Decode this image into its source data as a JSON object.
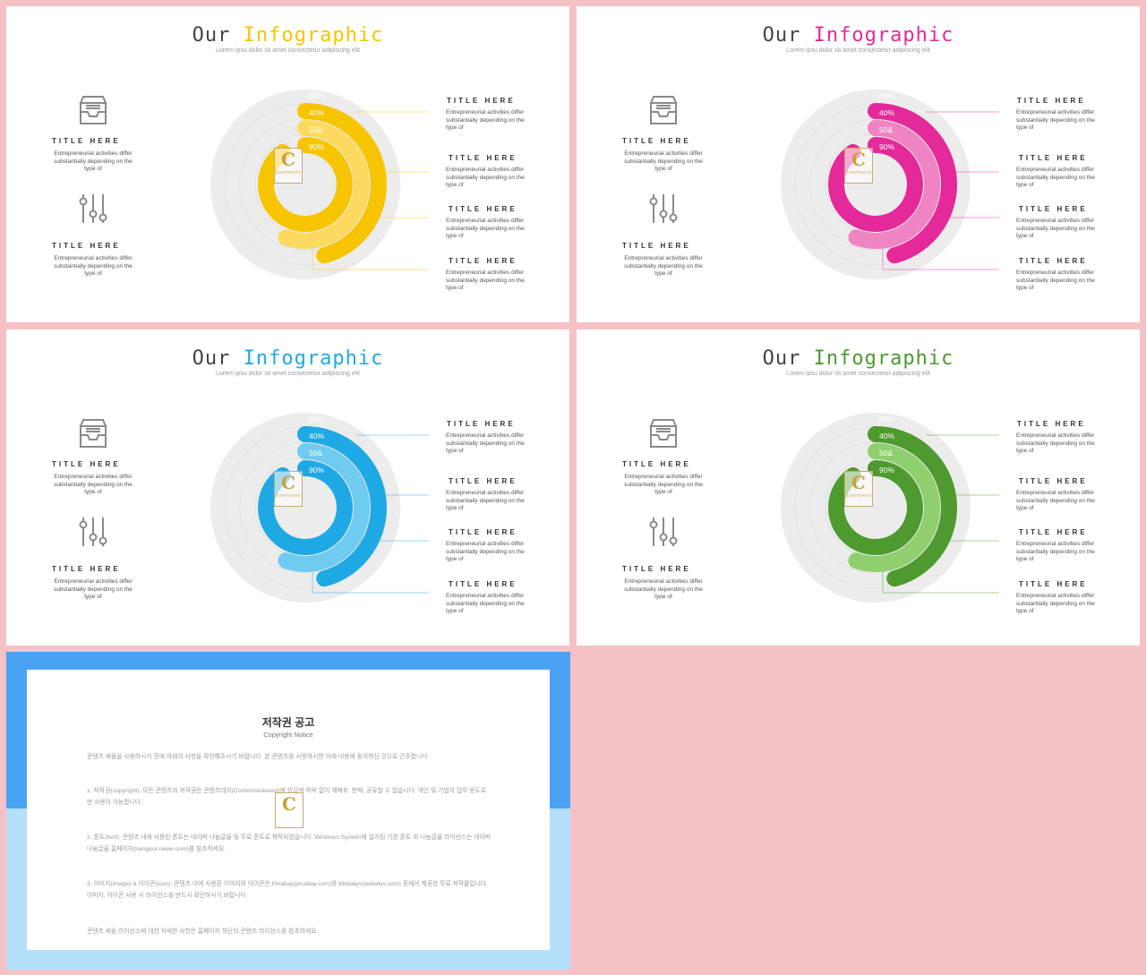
{
  "slides": [
    {
      "title_prefix": "Our",
      "title_accent": "Infographic",
      "subtitle": "Lorem ipsu dolor sit amet consectetur adipiscing elit",
      "accent": "#f7c400",
      "accent_light": "#fcd960",
      "left_items": [
        {
          "title": "TITLE HERE",
          "body": "Entrepreneurial activities differ substantially depending on the type of",
          "icon": "inbox-tray-icon"
        },
        {
          "title": "TITLE HERE",
          "body": "Entrepreneurial activities differ substantially depending on the type of",
          "icon": "sliders-icon"
        }
      ],
      "right_items": [
        {
          "title": "TITLE HERE",
          "body": "Entrepreneurial activities differ substantially depending on the type of"
        },
        {
          "title": "TITLE HERE",
          "body": "Entrepreneurial activities differ substantially depending on the type of"
        },
        {
          "title": "TITLE HERE",
          "body": "Entrepreneurial activities differ substantially depending on the type of"
        },
        {
          "title": "TITLE HERE",
          "body": "Entrepreneurial activities differ substantially depending on the type of"
        }
      ],
      "labels": [
        "80%",
        "40%",
        "50&",
        "90%"
      ]
    },
    {
      "title_prefix": "Our",
      "title_accent": "Infographic",
      "subtitle": "Lorem ipsu dolor sit amet consectetur adipiscing elit",
      "accent": "#e4299a",
      "accent_light": "#ee84c2",
      "left_items": [
        {
          "title": "TITLE HERE",
          "body": "Entrepreneurial activities differ substantially depending on the type of",
          "icon": "inbox-tray-icon"
        },
        {
          "title": "TITLE HERE",
          "body": "Entrepreneurial activities differ substantially depending on the type of",
          "icon": "sliders-icon"
        }
      ],
      "right_items": [
        {
          "title": "TITLE HERE",
          "body": "Entrepreneurial activities differ substantially depending on the type of"
        },
        {
          "title": "TITLE HERE",
          "body": "Entrepreneurial activities differ substantially depending on the type of"
        },
        {
          "title": "TITLE HERE",
          "body": "Entrepreneurial activities differ substantially depending on the type of"
        },
        {
          "title": "TITLE HERE",
          "body": "Entrepreneurial activities differ substantially depending on the type of"
        }
      ],
      "labels": [
        "80%",
        "40%",
        "50&",
        "90%"
      ]
    },
    {
      "title_prefix": "Our",
      "title_accent": "Infographic",
      "subtitle": "Lorem ipsu dolor sit amet consectetur adipiscing elit",
      "accent": "#1fa9e4",
      "accent_light": "#6fcbf0",
      "left_items": [
        {
          "title": "TITLE HERE",
          "body": "Entrepreneurial activities differ substantially depending on the type of",
          "icon": "inbox-tray-icon"
        },
        {
          "title": "TITLE HERE",
          "body": "Entrepreneurial activities differ substantially depending on the type of",
          "icon": "sliders-icon"
        }
      ],
      "right_items": [
        {
          "title": "TITLE HERE",
          "body": "Entrepreneurial activities differ substantially depending on the type of"
        },
        {
          "title": "TITLE HERE",
          "body": "Entrepreneurial activities differ substantially depending on the type of"
        },
        {
          "title": "TITLE HERE",
          "body": "Entrepreneurial activities differ substantially depending on the type of"
        },
        {
          "title": "TITLE HERE",
          "body": "Entrepreneurial activities differ substantially depending on the type of"
        }
      ],
      "labels": [
        "80%",
        "40%",
        "50&",
        "90%"
      ]
    },
    {
      "title_prefix": "Our",
      "title_accent": "Infographic",
      "subtitle": "Lorem ipsu dolor sit amet consectetur adipiscing elit",
      "accent": "#4e9a2e",
      "accent_light": "#8fcf6e",
      "left_items": [
        {
          "title": "TITLE HERE",
          "body": "Entrepreneurial activities differ substantially depending on the type of",
          "icon": "inbox-tray-icon"
        },
        {
          "title": "TITLE HERE",
          "body": "Entrepreneurial activities differ substantially depending on the type of",
          "icon": "sliders-icon"
        }
      ],
      "right_items": [
        {
          "title": "TITLE HERE",
          "body": "Entrepreneurial activities differ substantially depending on the type of"
        },
        {
          "title": "TITLE HERE",
          "body": "Entrepreneurial activities differ substantially depending on the type of"
        },
        {
          "title": "TITLE HERE",
          "body": "Entrepreneurial activities differ substantially depending on the type of"
        },
        {
          "title": "TITLE HERE",
          "body": "Entrepreneurial activities differ substantially depending on the type of"
        }
      ],
      "labels": [
        "80%",
        "40%",
        "50&",
        "90%"
      ]
    }
  ],
  "logo": {
    "letter": "C",
    "text": "CONTENTS"
  },
  "notice": {
    "title": "저작권 공고",
    "subtitle": "Copyright Notice",
    "paragraphs": [
      "콘텐츠 세움을 사용하시기 전에 아래의 사항을 확인해주시기 바랍니다. 본 콘텐츠를 사용하시면 아래 내용에 동의하신 것으로 간주합니다.",
      "1. 저작권(copyright): 모든 콘텐츠의 저작권은 콘텐츠데이(Contentstokeout)에 있으며 허락 없이 재배포, 판매, 공유할 수 없습니다. 개인 및 기업의 업무 용도로만 사용이 가능합니다.",
      "2. 폰트(font): 콘텐츠 내에 사용된 폰트는 네이버 나눔글꼴 및 무료 폰트로 제작되었습니다. Windows System에 설치된 기본 폰트 외 나눔글꼴 라이선스는 네이버 나눔글꼴 홈페이지(hangeul.naver.com)를 참조하세요.",
      "3. 이미지(image) & 아이콘(icon): 콘텐츠 내에 사용된 이미지와 아이콘은 Pixabay(pixabay.com)와 Webalys(webalys.com) 등에서 제공한 무료 저작물입니다. 이미지, 아이콘 사용 시 라이선스를 반드시 확인하시기 바랍니다.",
      "콘텐츠 세움 라이선스에 대한 자세한 사항은 홈페이지 하단의 콘텐츠 라이선스를 참조하세요."
    ]
  }
}
